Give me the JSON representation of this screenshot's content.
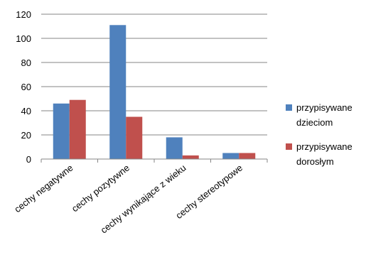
{
  "chart_data": {
    "type": "bar",
    "categories": [
      "cechy negatywne",
      "cechy pozytywne",
      "cechy wynikające z wieku",
      "cechy stereotypowe"
    ],
    "series": [
      {
        "name": "przypisywane dzieciom",
        "legend_lines": [
          "przypisywane",
          "dzieciom"
        ],
        "color": "#4F81BD",
        "values": [
          46,
          111,
          18,
          5
        ]
      },
      {
        "name": "przypisywane dorosłym",
        "legend_lines": [
          "przypisywane",
          "dorosłym"
        ],
        "color": "#C0504D",
        "values": [
          49,
          35,
          3,
          5
        ]
      }
    ],
    "ylim": [
      0,
      120
    ],
    "yticks": [
      0,
      20,
      40,
      60,
      80,
      100,
      120
    ],
    "grid": true,
    "legend": "right"
  }
}
